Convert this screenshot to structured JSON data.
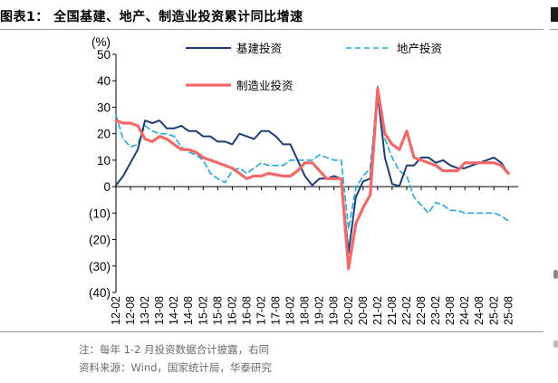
{
  "header": {
    "title": "图表1：  全国基建、地产、制造业投资累计同比增速"
  },
  "footer": {
    "note": "注：每年 1-2 月投资数据合计披露，右同",
    "source": "资料来源：Wind，国家统计局，华泰研究"
  },
  "chart_data": {
    "type": "line",
    "title": "全国基建、地产、制造业投资累计同比增速",
    "ylabel": "(%)",
    "ylim": [
      -40,
      50
    ],
    "yticks": [
      50,
      40,
      30,
      20,
      10,
      0,
      -10,
      -20,
      -30,
      -40
    ],
    "ytick_labels": [
      "50",
      "40",
      "30",
      "20",
      "10",
      "0",
      "(10)",
      "(20)",
      "(30)",
      "(40)"
    ],
    "xtick_labels": [
      "12-02",
      "12-08",
      "13-02",
      "13-08",
      "14-02",
      "14-08",
      "15-02",
      "15-08",
      "16-02",
      "16-08",
      "17-02",
      "17-08",
      "18-02",
      "18-08",
      "19-02",
      "19-08",
      "20-02",
      "20-08",
      "21-02",
      "21-08",
      "22-02",
      "22-08",
      "23-02",
      "23-08",
      "24-02",
      "24-08",
      "25-02",
      "25-08"
    ],
    "grid": false,
    "legend_position": "top",
    "series": [
      {
        "name": "基建投资",
        "color": "#1f3c73",
        "style": "solid",
        "points": [
          [
            "12-02",
            0.5
          ],
          [
            "12-05",
            4
          ],
          [
            "12-08",
            9
          ],
          [
            "12-11",
            14
          ],
          [
            "13-02",
            25
          ],
          [
            "13-05",
            24
          ],
          [
            "13-08",
            25
          ],
          [
            "13-11",
            22
          ],
          [
            "14-02",
            22
          ],
          [
            "14-05",
            23
          ],
          [
            "14-08",
            21
          ],
          [
            "14-11",
            21
          ],
          [
            "15-02",
            19
          ],
          [
            "15-05",
            19
          ],
          [
            "15-08",
            17
          ],
          [
            "15-11",
            17
          ],
          [
            "16-02",
            16
          ],
          [
            "16-05",
            20
          ],
          [
            "16-08",
            19
          ],
          [
            "16-11",
            18
          ],
          [
            "17-02",
            21
          ],
          [
            "17-05",
            21
          ],
          [
            "17-08",
            19
          ],
          [
            "17-11",
            16
          ],
          [
            "18-02",
            16
          ],
          [
            "18-05",
            10
          ],
          [
            "18-08",
            4
          ],
          [
            "18-11",
            0.5
          ],
          [
            "19-02",
            3
          ],
          [
            "19-05",
            3
          ],
          [
            "19-08",
            4
          ],
          [
            "19-11",
            3
          ],
          [
            "20-02",
            -25
          ],
          [
            "20-05",
            -4
          ],
          [
            "20-08",
            2
          ],
          [
            "20-11",
            3
          ],
          [
            "21-02",
            35
          ],
          [
            "21-05",
            11
          ],
          [
            "21-08",
            1
          ],
          [
            "21-11",
            0.2
          ],
          [
            "22-02",
            8
          ],
          [
            "22-05",
            8
          ],
          [
            "22-08",
            11
          ],
          [
            "22-11",
            11
          ],
          [
            "23-02",
            9
          ],
          [
            "23-05",
            10
          ],
          [
            "23-08",
            8
          ],
          [
            "23-11",
            7
          ],
          [
            "24-02",
            7
          ],
          [
            "24-05",
            8
          ],
          [
            "24-08",
            9
          ],
          [
            "24-11",
            10
          ],
          [
            "25-02",
            11
          ],
          [
            "25-05",
            9
          ],
          [
            "25-08",
            5
          ]
        ]
      },
      {
        "name": "地产投资",
        "color": "#29a3dc",
        "style": "dashed",
        "points": [
          [
            "12-02",
            27
          ],
          [
            "12-05",
            18
          ],
          [
            "12-08",
            15
          ],
          [
            "12-11",
            16
          ],
          [
            "13-02",
            23
          ],
          [
            "13-05",
            21
          ],
          [
            "13-08",
            20
          ],
          [
            "13-11",
            20
          ],
          [
            "14-02",
            19
          ],
          [
            "14-05",
            15
          ],
          [
            "14-08",
            13
          ],
          [
            "14-11",
            12
          ],
          [
            "15-02",
            10
          ],
          [
            "15-05",
            5
          ],
          [
            "15-08",
            3
          ],
          [
            "15-11",
            1.5
          ],
          [
            "16-02",
            6
          ],
          [
            "16-05",
            7
          ],
          [
            "16-08",
            5
          ],
          [
            "16-11",
            7
          ],
          [
            "17-02",
            9
          ],
          [
            "17-05",
            8
          ],
          [
            "17-08",
            8
          ],
          [
            "17-11",
            8
          ],
          [
            "18-02",
            10
          ],
          [
            "18-05",
            10
          ],
          [
            "18-08",
            10
          ],
          [
            "18-11",
            10
          ],
          [
            "19-02",
            12
          ],
          [
            "19-05",
            11
          ],
          [
            "19-08",
            10
          ],
          [
            "19-11",
            10
          ],
          [
            "20-02",
            -16
          ],
          [
            "20-05",
            -0.5
          ],
          [
            "20-08",
            4
          ],
          [
            "20-11",
            7
          ],
          [
            "21-02",
            38
          ],
          [
            "21-05",
            18
          ],
          [
            "21-08",
            11
          ],
          [
            "21-11",
            6
          ],
          [
            "22-02",
            4
          ],
          [
            "22-05",
            -4
          ],
          [
            "22-08",
            -7
          ],
          [
            "22-11",
            -10
          ],
          [
            "23-02",
            -6
          ],
          [
            "23-05",
            -7
          ],
          [
            "23-08",
            -9
          ],
          [
            "23-11",
            -9
          ],
          [
            "24-02",
            -10
          ],
          [
            "24-05",
            -10
          ],
          [
            "24-08",
            -10
          ],
          [
            "24-11",
            -10
          ],
          [
            "25-02",
            -10
          ],
          [
            "25-05",
            -11
          ],
          [
            "25-08",
            -13
          ]
        ]
      },
      {
        "name": "制造业投资",
        "color": "#f06a6a",
        "style": "solid-thick",
        "points": [
          [
            "12-02",
            25
          ],
          [
            "12-05",
            24
          ],
          [
            "12-08",
            24
          ],
          [
            "12-11",
            23
          ],
          [
            "13-02",
            18
          ],
          [
            "13-05",
            17
          ],
          [
            "13-08",
            19
          ],
          [
            "13-11",
            18
          ],
          [
            "14-02",
            16
          ],
          [
            "14-05",
            14
          ],
          [
            "14-08",
            14
          ],
          [
            "14-11",
            13
          ],
          [
            "15-02",
            11
          ],
          [
            "15-05",
            10
          ],
          [
            "15-08",
            9
          ],
          [
            "15-11",
            8
          ],
          [
            "16-02",
            7
          ],
          [
            "16-05",
            5
          ],
          [
            "16-08",
            3
          ],
          [
            "16-11",
            4
          ],
          [
            "17-02",
            4
          ],
          [
            "17-05",
            5
          ],
          [
            "17-08",
            4.5
          ],
          [
            "17-11",
            4
          ],
          [
            "18-02",
            4
          ],
          [
            "18-05",
            6
          ],
          [
            "18-08",
            9
          ],
          [
            "18-11",
            9
          ],
          [
            "19-02",
            6
          ],
          [
            "19-05",
            3
          ],
          [
            "19-08",
            3
          ],
          [
            "19-11",
            3
          ],
          [
            "20-02",
            -31
          ],
          [
            "20-05",
            -14
          ],
          [
            "20-08",
            -8
          ],
          [
            "20-11",
            -3
          ],
          [
            "21-02",
            37
          ],
          [
            "21-05",
            20
          ],
          [
            "21-08",
            16
          ],
          [
            "21-11",
            14
          ],
          [
            "22-02",
            21
          ],
          [
            "22-05",
            11
          ],
          [
            "22-08",
            10
          ],
          [
            "22-11",
            9
          ],
          [
            "23-02",
            8
          ],
          [
            "23-05",
            6
          ],
          [
            "23-08",
            6
          ],
          [
            "23-11",
            6
          ],
          [
            "24-02",
            9
          ],
          [
            "24-05",
            9
          ],
          [
            "24-08",
            9
          ],
          [
            "24-11",
            9
          ],
          [
            "25-02",
            9
          ],
          [
            "25-05",
            8
          ],
          [
            "25-08",
            5
          ]
        ]
      }
    ]
  }
}
